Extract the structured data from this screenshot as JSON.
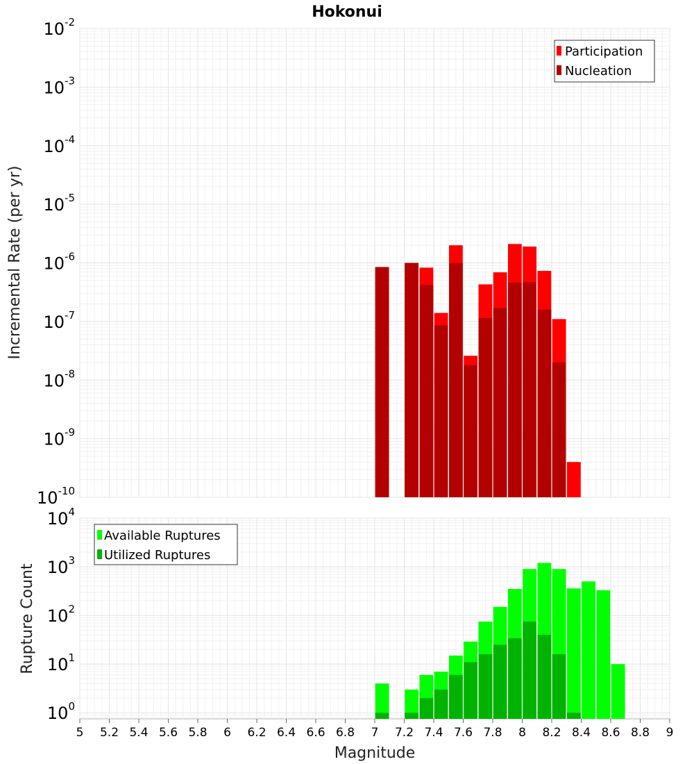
{
  "chart_data": [
    {
      "type": "bar",
      "title": "Hokonui",
      "xlabel": "",
      "ylabel": "Incremental Rate (per yr)",
      "yscale": "log",
      "xlim": [
        5,
        9
      ],
      "ylim": [
        1e-10,
        0.01
      ],
      "grid": true,
      "legend_position": "top-right",
      "bin_width": 0.1,
      "x": [
        7.05,
        7.25,
        7.35,
        7.45,
        7.55,
        7.65,
        7.75,
        7.85,
        7.95,
        8.05,
        8.15,
        8.25,
        8.35,
        8.45
      ],
      "series": [
        {
          "name": "Participation",
          "color": "#ff0000",
          "values": [
            8.5e-07,
            1e-06,
            8.3e-07,
            1.4e-07,
            2e-06,
            2.6e-08,
            4.3e-07,
            6.9e-07,
            2.1e-06,
            1.9e-06,
            7.3e-07,
            1.1e-07,
            4e-10,
            null
          ]
        },
        {
          "name": "Nucleation",
          "color": "#b30000",
          "values": [
            8.5e-07,
            1e-06,
            4.2e-07,
            8.6e-08,
            1e-06,
            1.8e-08,
            1.15e-07,
            1.7e-07,
            4.6e-07,
            4.7e-07,
            1.6e-07,
            2e-08,
            null,
            null
          ]
        }
      ],
      "yticks": [
        {
          "base": "10",
          "exp": "-2"
        },
        {
          "base": "10",
          "exp": "-3"
        },
        {
          "base": "10",
          "exp": "-4"
        },
        {
          "base": "10",
          "exp": "-5"
        },
        {
          "base": "10",
          "exp": "-6"
        },
        {
          "base": "10",
          "exp": "-7"
        },
        {
          "base": "10",
          "exp": "-8"
        },
        {
          "base": "10",
          "exp": "-9"
        },
        {
          "base": "10",
          "exp": "-10"
        }
      ]
    },
    {
      "type": "bar",
      "title": "",
      "xlabel": "Magnitude",
      "ylabel": "Rupture Count",
      "yscale": "log",
      "xlim": [
        5,
        9
      ],
      "ylim": [
        0.75,
        10000
      ],
      "grid": true,
      "legend_position": "top-left",
      "bin_width": 0.1,
      "series": [
        {
          "name": "Available Ruptures",
          "color": "#00ff00",
          "x": [
            7.05,
            7.25,
            7.35,
            7.45,
            7.55,
            7.65,
            7.75,
            7.85,
            7.95,
            8.05,
            8.15,
            8.25,
            8.35,
            8.45,
            8.55,
            8.65,
            8.75
          ],
          "values": [
            4,
            3,
            6,
            7,
            15,
            29,
            75,
            150,
            350,
            900,
            1200,
            900,
            360,
            500,
            330,
            10,
            null
          ]
        },
        {
          "name": "Utilized Ruptures",
          "color": "#00b300",
          "x": [
            7.05,
            7.25,
            7.35,
            7.45,
            7.55,
            7.65,
            7.75,
            7.85,
            7.95,
            8.05,
            8.15,
            8.25,
            8.35
          ],
          "values": [
            1,
            1,
            2,
            3,
            6,
            11,
            16,
            25,
            34,
            75,
            40,
            16,
            1
          ]
        }
      ],
      "xticks": [
        "5",
        "5.2",
        "5.4",
        "5.6",
        "5.8",
        "6",
        "6.2",
        "6.4",
        "6.6",
        "6.8",
        "7",
        "7.2",
        "7.4",
        "7.6",
        "7.8",
        "8",
        "8.2",
        "8.4",
        "8.6",
        "8.8",
        "9"
      ],
      "yticks": [
        {
          "base": "10",
          "exp": "4"
        },
        {
          "base": "10",
          "exp": "3"
        },
        {
          "base": "10",
          "exp": "2"
        },
        {
          "base": "10",
          "exp": "1"
        },
        {
          "base": "10",
          "exp": "0"
        }
      ]
    }
  ]
}
